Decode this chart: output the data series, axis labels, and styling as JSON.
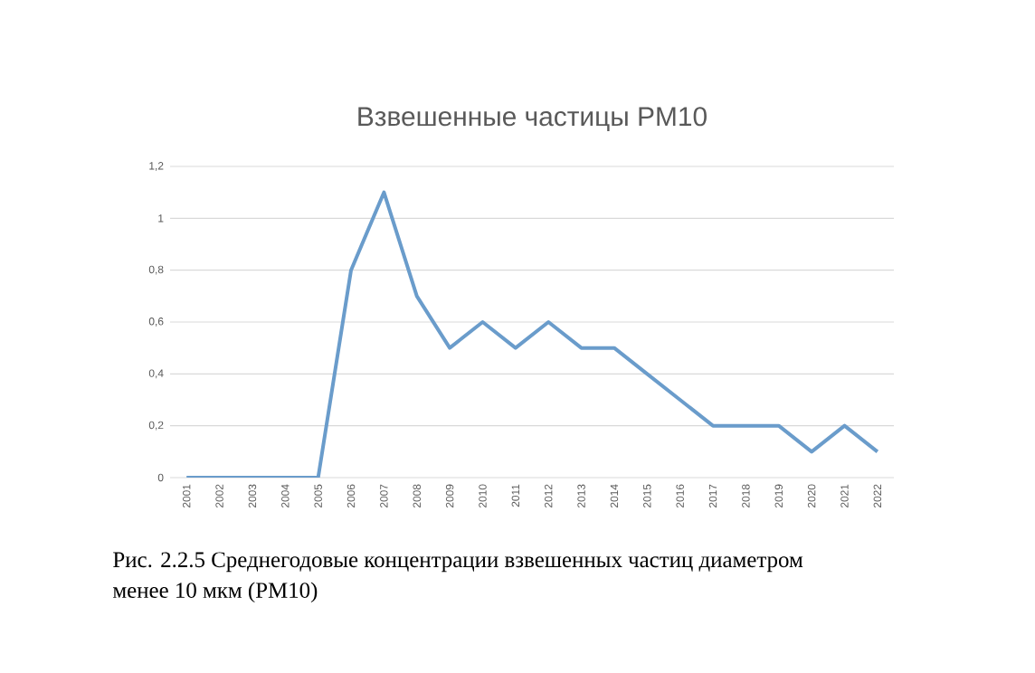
{
  "chart_data": {
    "type": "line",
    "title": "Взвешенные частицы PM10",
    "categories": [
      "2001",
      "2002",
      "2003",
      "2004",
      "2005",
      "2006",
      "2007",
      "2008",
      "2009",
      "2010",
      "2011",
      "2012",
      "2013",
      "2014",
      "2015",
      "2016",
      "2017",
      "2018",
      "2019",
      "2020",
      "2021",
      "2022"
    ],
    "series": [
      {
        "color": "#6a9ccb",
        "values": [
          0,
          0,
          0,
          0,
          0,
          0.8,
          1.1,
          0.7,
          0.5,
          0.6,
          0.5,
          0.6,
          0.5,
          0.5,
          0.4,
          0.3,
          0.2,
          0.2,
          0.2,
          0.1,
          0.2,
          0.1
        ]
      }
    ],
    "ylim": [
      0,
      1.2
    ],
    "yticks": [
      0,
      {
        "value": 0.2,
        "label": "0,2"
      },
      {
        "value": 0.4,
        "label": "0,4"
      },
      {
        "value": 0.6,
        "label": "0,6"
      },
      {
        "value": 0.8,
        "label": "0,8"
      },
      1,
      {
        "value": 1.2,
        "label": "1,2"
      }
    ],
    "grid": "y",
    "legend": false,
    "marker": "none",
    "line_style": "solid",
    "annotations": [
      "Рис. 2.2.5 Среднегодовые концентрации взвешенных частиц диаметром менее 10 мкм (PM10)"
    ]
  }
}
